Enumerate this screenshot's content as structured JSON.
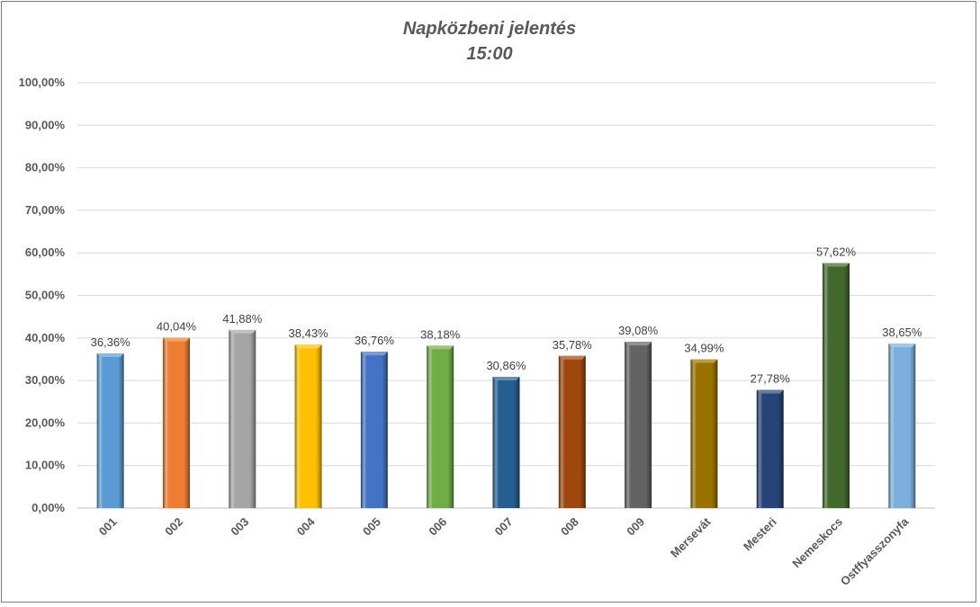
{
  "chart_data": {
    "type": "bar",
    "title": "Napközbeni jelentés",
    "subtitle": "15:00",
    "categories": [
      "001",
      "002",
      "003",
      "004",
      "005",
      "006",
      "007",
      "008",
      "009",
      "Mersevát",
      "Mesteri",
      "Nemeskocs",
      "Ostffyasszonyfa"
    ],
    "values": [
      36.36,
      40.04,
      41.88,
      38.43,
      36.76,
      38.18,
      30.86,
      35.78,
      39.08,
      34.99,
      27.78,
      57.62,
      38.65
    ],
    "value_labels": [
      "36,36%",
      "40,04%",
      "41,88%",
      "38,43%",
      "36,76%",
      "38,18%",
      "30,86%",
      "35,78%",
      "39,08%",
      "34,99%",
      "27,78%",
      "57,62%",
      "38,65%"
    ],
    "colors": [
      "#5b9bd5",
      "#ed7d31",
      "#a5a5a5",
      "#ffc000",
      "#4472c4",
      "#70ad47",
      "#255e91",
      "#9e480e",
      "#636363",
      "#997300",
      "#264478",
      "#43682b",
      "#7cafdd"
    ],
    "ylim": [
      0,
      100
    ],
    "y_ticks": [
      "0,00%",
      "10,00%",
      "20,00%",
      "30,00%",
      "40,00%",
      "50,00%",
      "60,00%",
      "70,00%",
      "80,00%",
      "90,00%",
      "100,00%"
    ],
    "xlabel": "",
    "ylabel": "",
    "grid": true,
    "legend": "none"
  }
}
